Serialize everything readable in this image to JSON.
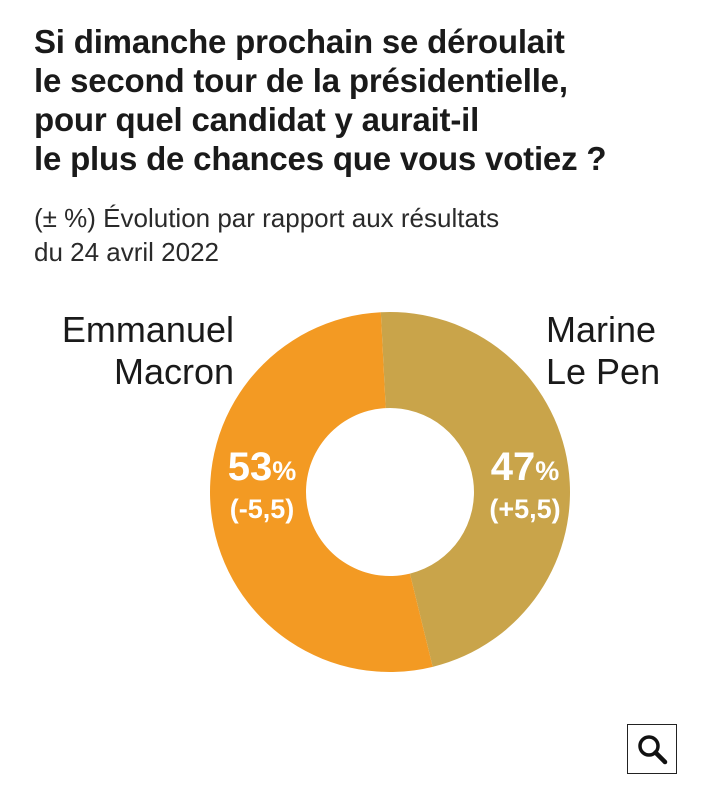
{
  "title_lines": [
    "Si dimanche prochain se déroulait",
    "le second tour de la présidentielle,",
    "pour quel candidat y aurait-il",
    "le plus de chances que vous votiez ?"
  ],
  "subtitle_lines": [
    "(± %) Évolution par rapport aux résultats",
    "du 24 avril 2022"
  ],
  "chart_data": {
    "type": "pie",
    "donut": true,
    "title": "Si dimanche prochain se déroulait le second tour de la présidentielle, pour quel candidat y aurait-il le plus de chances que vous votiez ?",
    "subtitle": "(± %) Évolution par rapport aux résultats du 24 avril 2022",
    "categories": [
      "Emmanuel Macron",
      "Marine Le Pen"
    ],
    "values": [
      53,
      47
    ],
    "changes": [
      "(-5,5)",
      "(+5,5)"
    ],
    "unit": "%",
    "colors": [
      "#f39a23",
      "#c9a44a"
    ],
    "candidates": [
      {
        "name_lines": [
          "Emmanuel",
          "Macron"
        ],
        "value": 53,
        "value_text": "53",
        "unit": "%",
        "change": "(-5,5)",
        "color": "#f39a23"
      },
      {
        "name_lines": [
          "Marine",
          "Le Pen"
        ],
        "value": 47,
        "value_text": "47",
        "unit": "%",
        "change": "(+5,5)",
        "color": "#c9a44a"
      }
    ]
  },
  "zoom_button": {
    "icon": "magnifier-icon"
  }
}
